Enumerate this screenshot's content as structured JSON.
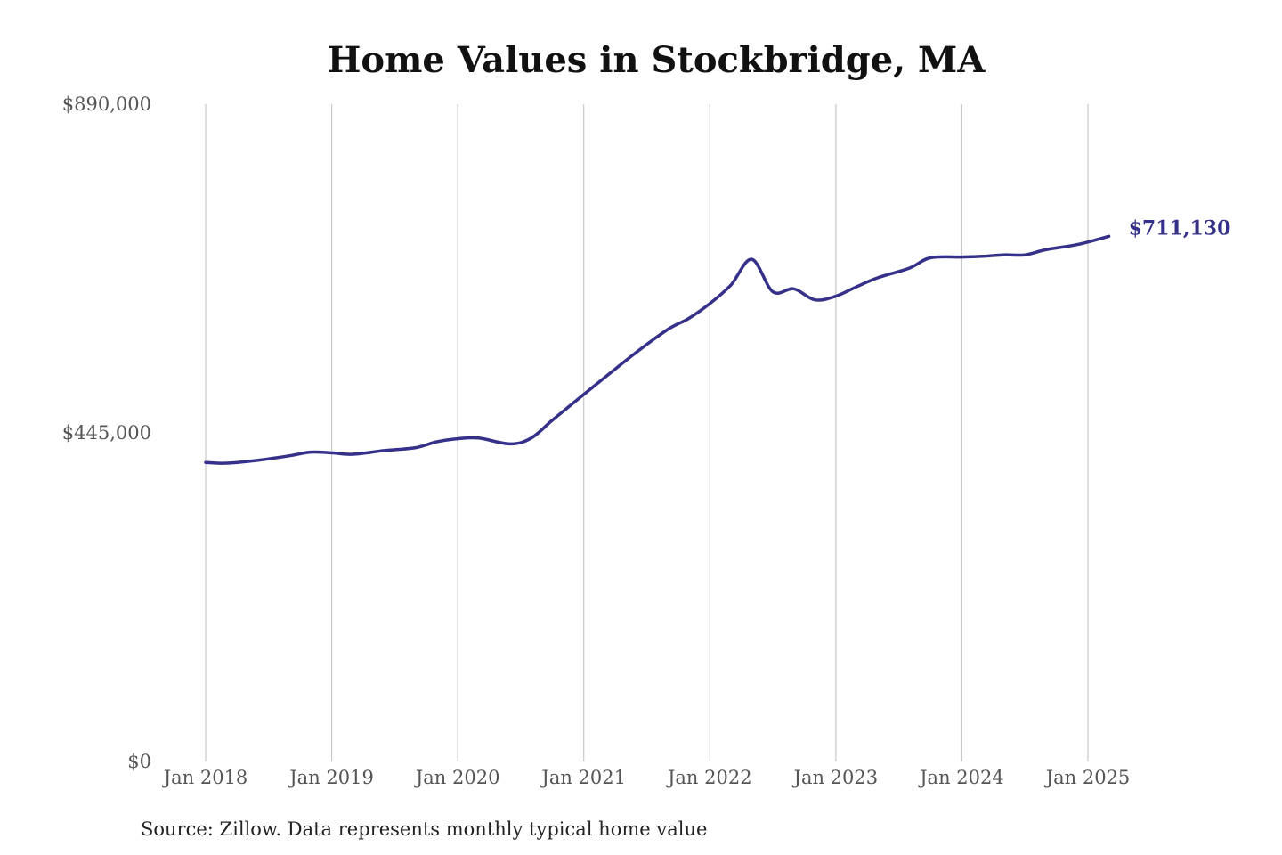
{
  "chart_data": {
    "type": "line",
    "title": "Home Values in Stockbridge, MA",
    "source": "Source: Zillow. Data represents monthly typical home value",
    "xlabel": "",
    "ylabel": "",
    "ylim": [
      0,
      890000
    ],
    "yticks": [
      {
        "value": 0,
        "label": "$0"
      },
      {
        "value": 445000,
        "label": "$445,000"
      },
      {
        "value": 890000,
        "label": "$890,000"
      }
    ],
    "xticks": [
      {
        "date": "2018-01",
        "label": "Jan 2018"
      },
      {
        "date": "2019-01",
        "label": "Jan 2019"
      },
      {
        "date": "2020-01",
        "label": "Jan 2020"
      },
      {
        "date": "2021-01",
        "label": "Jan 2021"
      },
      {
        "date": "2022-01",
        "label": "Jan 2022"
      },
      {
        "date": "2023-01",
        "label": "Jan 2023"
      },
      {
        "date": "2024-01",
        "label": "Jan 2024"
      },
      {
        "date": "2025-01",
        "label": "Jan 2025"
      }
    ],
    "grid": "vertical",
    "line_color": "#35308a",
    "end_label": "$711,130",
    "series": [
      {
        "points": [
          [
            "2018-01",
            405000
          ],
          [
            "2018-03",
            404000
          ],
          [
            "2018-06",
            408000
          ],
          [
            "2018-09",
            414000
          ],
          [
            "2018-11",
            419000
          ],
          [
            "2019-01",
            418000
          ],
          [
            "2019-03",
            416000
          ],
          [
            "2019-06",
            421000
          ],
          [
            "2019-09",
            425000
          ],
          [
            "2019-11",
            433000
          ],
          [
            "2020-01",
            437000
          ],
          [
            "2020-03",
            438000
          ],
          [
            "2020-06",
            430000
          ],
          [
            "2020-08",
            438000
          ],
          [
            "2020-10",
            462000
          ],
          [
            "2021-01",
            497000
          ],
          [
            "2021-03",
            520000
          ],
          [
            "2021-06",
            554000
          ],
          [
            "2021-09",
            585000
          ],
          [
            "2021-11",
            600000
          ],
          [
            "2022-01",
            620000
          ],
          [
            "2022-03",
            645000
          ],
          [
            "2022-05",
            680000
          ],
          [
            "2022-07",
            636000
          ],
          [
            "2022-09",
            640000
          ],
          [
            "2022-11",
            625000
          ],
          [
            "2023-01",
            630000
          ],
          [
            "2023-03",
            643000
          ],
          [
            "2023-05",
            655000
          ],
          [
            "2023-08",
            668000
          ],
          [
            "2023-10",
            682000
          ],
          [
            "2024-01",
            683000
          ],
          [
            "2024-03",
            684000
          ],
          [
            "2024-05",
            686000
          ],
          [
            "2024-07",
            686000
          ],
          [
            "2024-09",
            693000
          ],
          [
            "2024-12",
            700000
          ],
          [
            "2025-03",
            711130
          ]
        ]
      }
    ]
  }
}
